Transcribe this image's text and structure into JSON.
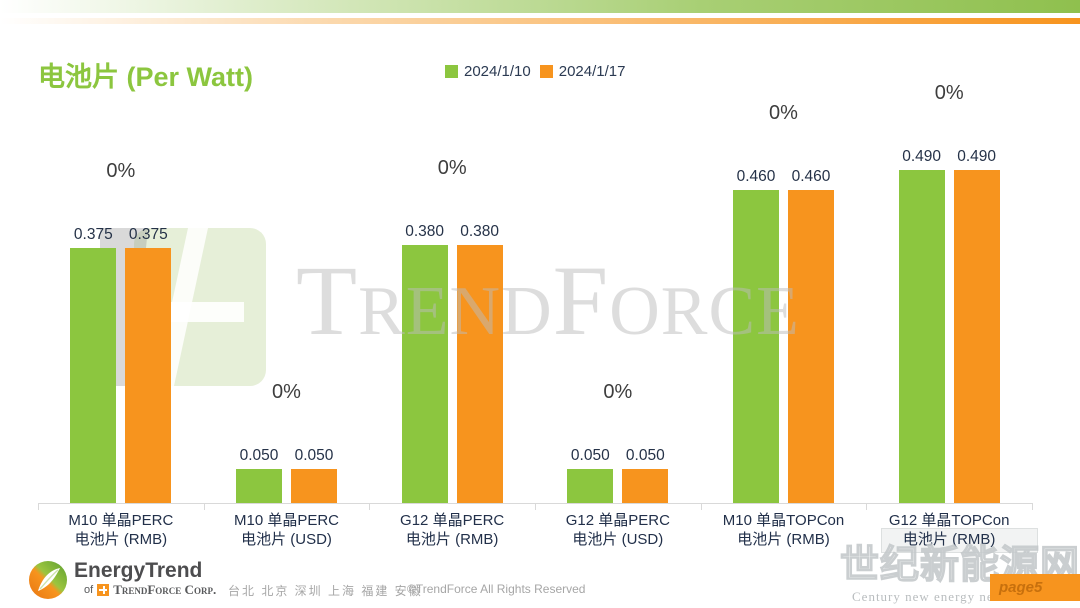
{
  "header": {
    "title": "电池片 (Per Watt)"
  },
  "legend": {
    "items": [
      {
        "label": "2024/1/10",
        "color": "#8cc63f"
      },
      {
        "label": "2024/1/17",
        "color": "#f7941e"
      }
    ]
  },
  "chart_data": {
    "type": "bar",
    "title": "电池片 (Per Watt)",
    "categories": [
      "M10 单晶PERC\n电池片 (RMB)",
      "M10 单晶PERC\n电池片 (USD)",
      "G12 单晶PERC\n电池片 (RMB)",
      "G12 单晶PERC\n电池片 (USD)",
      "M10 单晶TOPCon\n电池片 (RMB)",
      "G12 单晶TOPCon\n电池片 (RMB)"
    ],
    "series": [
      {
        "name": "2024/1/10",
        "color": "#8cc63f",
        "values": [
          0.375,
          0.05,
          0.38,
          0.05,
          0.46,
          0.49
        ]
      },
      {
        "name": "2024/1/17",
        "color": "#f7941e",
        "values": [
          0.375,
          0.05,
          0.38,
          0.05,
          0.46,
          0.49
        ]
      }
    ],
    "change_labels": [
      "0%",
      "0%",
      "0%",
      "0%",
      "0%",
      "0%"
    ],
    "value_decimals": 3,
    "ylim": [
      0,
      0.5
    ],
    "grid": false,
    "legend_position": "top-center"
  },
  "watermarks": {
    "trendforce_text": "TrendForce",
    "cn_site": "世纪新能源网",
    "cn_site_sub": "Century new energy network",
    "page_badge": "page5"
  },
  "footer": {
    "logo_title": "EnergyTrend",
    "logo_sub_prefix": "of",
    "logo_sub_corp": "TrendForce Corp.",
    "cities": "台北  北京  深圳  上海  福建  安徽",
    "copyright": "©TrendForce All Rights Reserved"
  }
}
